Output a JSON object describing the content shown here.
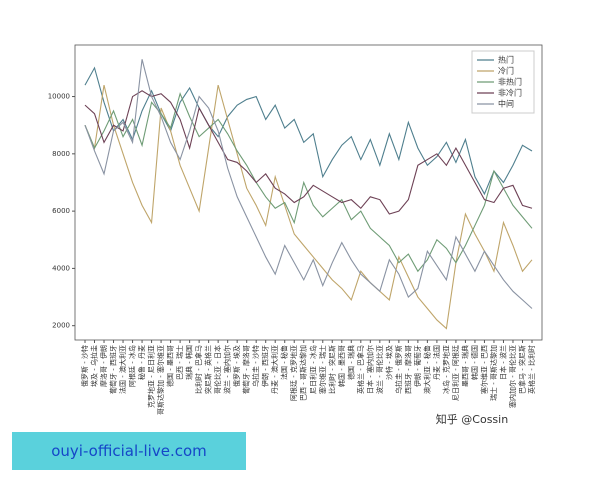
{
  "chart_data": {
    "type": "line",
    "categories": [
      "俄罗斯 - 沙特",
      "埃及 - 乌拉圭",
      "摩洛哥 - 伊朗",
      "葡萄牙 - 西班牙",
      "法国 - 澳大利亚",
      "阿根廷 - 冰岛",
      "秘鲁 - 丹麦",
      "克罗地亚 - 尼日利亚",
      "哥斯达黎加 - 塞尔维亚",
      "德国 - 墨西哥",
      "巴西 - 瑞士",
      "瑞典 - 韩国",
      "比利时 - 巴拿马",
      "突尼斯 - 英格兰",
      "哥伦比亚 - 日本",
      "波兰 - 塞内加尔",
      "俄罗斯 - 埃及",
      "葡萄牙 - 摩洛哥",
      "乌拉圭 - 沙特",
      "伊朗 - 西班牙",
      "丹麦 - 澳大利亚",
      "法国 - 秘鲁",
      "阿根廷 - 克罗地亚",
      "巴西 - 哥斯达黎加",
      "尼日利亚 - 冰岛",
      "塞尔维亚 - 瑞士",
      "比利时 - 突尼斯",
      "韩国 - 墨西哥",
      "德国 - 瑞典",
      "英格兰 - 巴拿马",
      "日本 - 塞内加尔",
      "波兰 - 哥伦比亚",
      "沙特 - 埃及",
      "乌拉圭 - 俄罗斯",
      "西班牙 - 摩洛哥",
      "伊朗 - 葡萄牙",
      "澳大利亚 - 秘鲁",
      "丹麦 - 法国",
      "冰岛 - 克罗地亚",
      "尼日利亚 - 阿根廷",
      "墨西哥 - 瑞典",
      "韩国 - 德国",
      "塞尔维亚 - 巴西",
      "瑞士 - 哥斯达黎加",
      "日本 - 波兰",
      "塞内加尔 - 哥伦比亚",
      "巴拿马 - 突尼斯",
      "英格兰 - 比利时"
    ],
    "series": [
      {
        "name": "热门",
        "color": "#4f7f8e",
        "values": [
          10400,
          11000,
          9800,
          8800,
          9200,
          8500,
          9500,
          10200,
          9400,
          8800,
          9800,
          10300,
          9600,
          9000,
          8600,
          9300,
          9700,
          9900,
          10000,
          9200,
          9700,
          8900,
          9200,
          8400,
          8700,
          7200,
          7800,
          8300,
          8600,
          7800,
          8500,
          7600,
          8700,
          7800,
          9100,
          8200,
          7600,
          7900,
          8400,
          7700,
          8500,
          7200,
          6600,
          7400,
          7000,
          7600,
          8300,
          8100
        ]
      },
      {
        "name": "冷门",
        "color": "#bfa56a",
        "values": [
          9000,
          8200,
          10400,
          9000,
          8000,
          7000,
          6200,
          5600,
          9600,
          8800,
          7600,
          6800,
          6000,
          8200,
          10400,
          9200,
          8000,
          6800,
          6200,
          5500,
          7200,
          6200,
          5200,
          4800,
          4400,
          4000,
          3600,
          3300,
          2900,
          3900,
          3500,
          3200,
          2900,
          4400,
          3700,
          3000,
          2600,
          2200,
          1900,
          4200,
          5900,
          5200,
          4600,
          3900,
          5600,
          4800,
          3900,
          4300
        ]
      },
      {
        "name": "非热门",
        "color": "#6f9c76",
        "values": [
          9000,
          8200,
          8800,
          9500,
          8600,
          9200,
          8300,
          9800,
          9400,
          8900,
          10100,
          9300,
          8600,
          8900,
          9200,
          8700,
          8100,
          7600,
          7000,
          6500,
          6100,
          6300,
          5600,
          7000,
          6200,
          5800,
          6100,
          6400,
          5700,
          6000,
          5400,
          5100,
          4800,
          4200,
          4500,
          3900,
          4300,
          5000,
          4700,
          4200,
          4800,
          5500,
          6200,
          7400,
          6800,
          6200,
          5800,
          5400
        ]
      },
      {
        "name": "非冷门",
        "color": "#6e4256",
        "values": [
          9700,
          9400,
          8400,
          9000,
          8800,
          10000,
          10200,
          10000,
          10100,
          9800,
          9200,
          8200,
          9600,
          9000,
          8400,
          7800,
          7700,
          7400,
          7000,
          7300,
          6800,
          6600,
          6300,
          6500,
          6900,
          6700,
          6500,
          6300,
          6400,
          6100,
          6500,
          6400,
          5900,
          6000,
          6400,
          7600,
          7800,
          8000,
          7600,
          8200,
          7600,
          7000,
          6400,
          6300,
          6800,
          6900,
          6200,
          6100
        ]
      },
      {
        "name": "中间",
        "color": "#8a93a3",
        "values": [
          9000,
          8100,
          7300,
          8800,
          9100,
          8400,
          11300,
          10000,
          9300,
          8400,
          7800,
          8800,
          10000,
          9600,
          8800,
          7500,
          6500,
          5800,
          5100,
          4400,
          3800,
          4800,
          4200,
          3600,
          4300,
          3400,
          4200,
          4900,
          4300,
          3800,
          3500,
          3200,
          4300,
          3800,
          3000,
          3300,
          4600,
          4100,
          3600,
          5100,
          4500,
          3900,
          4600,
          4100,
          3600,
          3200,
          2900,
          2600
        ]
      }
    ],
    "ylim": [
      1500,
      11800
    ],
    "yticks": [
      2000,
      4000,
      6000,
      8000,
      10000
    ],
    "grid": false,
    "legend": "upper right",
    "watermark": "知乎 @Cossin"
  },
  "banner": "ouyi-official-live.com"
}
